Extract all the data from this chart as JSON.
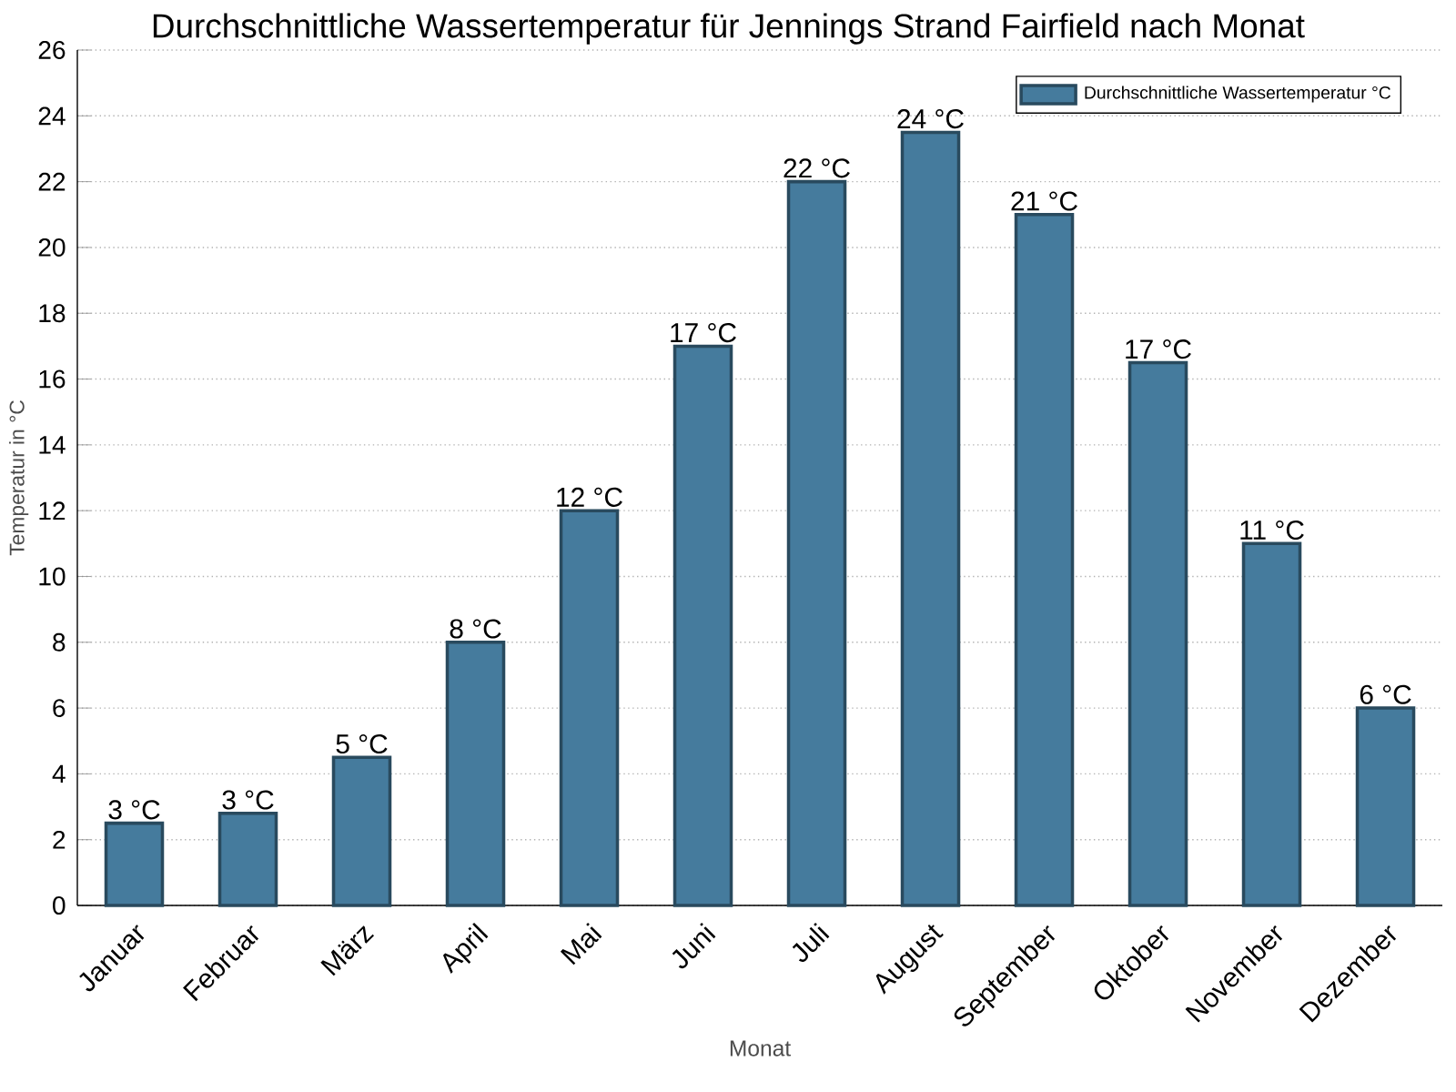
{
  "chart_data": {
    "type": "bar",
    "title": "Durchschnittliche Wassertemperatur für Jennings Strand Fairfield nach Monat",
    "xlabel": "Monat",
    "ylabel": "Temperatur in °C",
    "categories": [
      "Januar",
      "Februar",
      "März",
      "April",
      "Mai",
      "Juni",
      "Juli",
      "August",
      "September",
      "Oktober",
      "November",
      "Dezember"
    ],
    "series": [
      {
        "name": "Durchschnittliche Wassertemperatur °C",
        "color": "#457b9d",
        "values": [
          2.5,
          2.8,
          4.5,
          8.0,
          12.0,
          17.0,
          22.0,
          23.5,
          21.0,
          16.5,
          11.0,
          6.0
        ],
        "value_labels": [
          "3 °C",
          "3 °C",
          "5 °C",
          "8 °C",
          "12 °C",
          "17 °C",
          "22 °C",
          "24 °C",
          "21 °C",
          "17 °C",
          "11 °C",
          "6 °C"
        ]
      }
    ],
    "ylim": [
      0,
      26
    ],
    "yticks": [
      0,
      2,
      4,
      6,
      8,
      10,
      12,
      14,
      16,
      18,
      20,
      22,
      24,
      26
    ],
    "grid": "y",
    "legend": "top right"
  }
}
